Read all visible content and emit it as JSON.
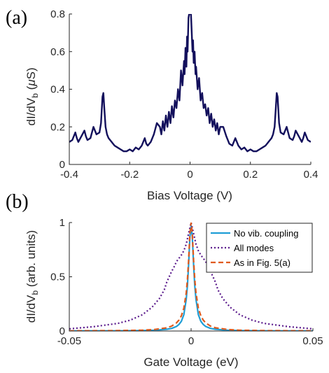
{
  "figure": {
    "panel_a_label": "(a)",
    "panel_b_label": "(b)"
  },
  "chart_data": [
    {
      "type": "line",
      "panel": "(a)",
      "title": "",
      "xlabel": "Bias Voltage (V)",
      "ylabel": "dI/dV_b  (μS)",
      "xlim": [
        -0.4,
        0.4
      ],
      "ylim": [
        0,
        0.8
      ],
      "xticks": [
        -0.4,
        -0.2,
        0,
        0.2,
        0.4
      ],
      "xtick_labels": [
        "-0.4",
        "-0.2",
        "0",
        "0.2",
        "0.4"
      ],
      "yticks": [
        0,
        0.2,
        0.4,
        0.6,
        0.8
      ],
      "ytick_labels": [
        "0",
        "0.2",
        "0.4",
        "0.6",
        "0.8"
      ],
      "grid": false,
      "color": "#13105c",
      "series": [
        {
          "x": [
            -0.4,
            -0.39,
            -0.38,
            -0.375,
            -0.37,
            -0.36,
            -0.35,
            -0.345,
            -0.34,
            -0.33,
            -0.32,
            -0.31,
            -0.3,
            -0.295,
            -0.29,
            -0.287,
            -0.284,
            -0.28,
            -0.275,
            -0.27,
            -0.26,
            -0.25,
            -0.24,
            -0.23,
            -0.22,
            -0.21,
            -0.2,
            -0.19,
            -0.18,
            -0.17,
            -0.16,
            -0.15,
            -0.145,
            -0.14,
            -0.13,
            -0.12,
            -0.11,
            -0.1,
            -0.095,
            -0.09,
            -0.085,
            -0.08,
            -0.075,
            -0.07,
            -0.065,
            -0.06,
            -0.055,
            -0.05,
            -0.045,
            -0.04,
            -0.035,
            -0.03,
            -0.025,
            -0.02,
            -0.018,
            -0.015,
            -0.012,
            -0.01,
            -0.008,
            -0.005,
            -0.003,
            0,
            0.003,
            0.005,
            0.008,
            0.01,
            0.012,
            0.015,
            0.018,
            0.02,
            0.025,
            0.03,
            0.035,
            0.04,
            0.045,
            0.05,
            0.055,
            0.06,
            0.065,
            0.07,
            0.075,
            0.08,
            0.085,
            0.09,
            0.095,
            0.1,
            0.11,
            0.12,
            0.13,
            0.14,
            0.145,
            0.15,
            0.16,
            0.17,
            0.18,
            0.19,
            0.2,
            0.21,
            0.22,
            0.23,
            0.24,
            0.25,
            0.26,
            0.27,
            0.275,
            0.28,
            0.284,
            0.287,
            0.29,
            0.295,
            0.3,
            0.31,
            0.32,
            0.33,
            0.34,
            0.345,
            0.35,
            0.36,
            0.37,
            0.375,
            0.38,
            0.39,
            0.4
          ],
          "y": [
            0.12,
            0.13,
            0.17,
            0.14,
            0.12,
            0.15,
            0.18,
            0.15,
            0.13,
            0.14,
            0.2,
            0.16,
            0.17,
            0.22,
            0.36,
            0.38,
            0.3,
            0.2,
            0.16,
            0.14,
            0.12,
            0.1,
            0.09,
            0.08,
            0.07,
            0.07,
            0.08,
            0.07,
            0.09,
            0.08,
            0.1,
            0.14,
            0.11,
            0.1,
            0.12,
            0.16,
            0.22,
            0.2,
            0.16,
            0.23,
            0.18,
            0.26,
            0.2,
            0.28,
            0.22,
            0.31,
            0.25,
            0.34,
            0.3,
            0.4,
            0.34,
            0.5,
            0.42,
            0.55,
            0.48,
            0.62,
            0.52,
            0.68,
            0.6,
            0.78,
            0.8,
            0.8,
            0.8,
            0.72,
            0.6,
            0.66,
            0.54,
            0.6,
            0.48,
            0.52,
            0.4,
            0.46,
            0.34,
            0.38,
            0.3,
            0.32,
            0.26,
            0.3,
            0.22,
            0.27,
            0.2,
            0.24,
            0.18,
            0.22,
            0.16,
            0.2,
            0.2,
            0.15,
            0.11,
            0.1,
            0.12,
            0.14,
            0.1,
            0.08,
            0.09,
            0.07,
            0.08,
            0.07,
            0.07,
            0.08,
            0.09,
            0.1,
            0.12,
            0.14,
            0.16,
            0.2,
            0.3,
            0.38,
            0.36,
            0.22,
            0.17,
            0.16,
            0.2,
            0.14,
            0.13,
            0.15,
            0.18,
            0.15,
            0.12,
            0.14,
            0.17,
            0.13,
            0.12
          ]
        }
      ]
    },
    {
      "type": "line",
      "panel": "(b)",
      "title": "",
      "xlabel": "Gate Voltage (eV)",
      "ylabel": "dI/dV_b  (arb. units)",
      "xlim": [
        -0.05,
        0.05
      ],
      "ylim": [
        0,
        1
      ],
      "xticks": [
        -0.05,
        0,
        0.05
      ],
      "xtick_labels": [
        "-0.05",
        "0",
        "0.05"
      ],
      "yticks": [
        0,
        0.5,
        1
      ],
      "ytick_labels": [
        "0",
        "0.5",
        "1"
      ],
      "grid": false,
      "legend_position": "top-right",
      "series": [
        {
          "name": "No vib. coupling",
          "color": "#1f9ed6",
          "style": "solid",
          "x": [
            -0.05,
            -0.03,
            -0.02,
            -0.015,
            -0.01,
            -0.008,
            -0.006,
            -0.005,
            -0.004,
            -0.003,
            -0.002,
            -0.0015,
            -0.001,
            -0.0005,
            0,
            0.0005,
            0.001,
            0.0015,
            0.002,
            0.003,
            0.004,
            0.005,
            0.006,
            0.008,
            0.01,
            0.015,
            0.02,
            0.03,
            0.05
          ],
          "y": [
            0.001,
            0.002,
            0.004,
            0.007,
            0.016,
            0.024,
            0.042,
            0.06,
            0.09,
            0.15,
            0.29,
            0.42,
            0.62,
            0.87,
            0.97,
            0.87,
            0.62,
            0.42,
            0.29,
            0.15,
            0.09,
            0.06,
            0.042,
            0.024,
            0.016,
            0.007,
            0.004,
            0.002,
            0.001
          ]
        },
        {
          "name": "All modes",
          "color": "#5a1a8c",
          "style": "dotted",
          "x": [
            -0.05,
            -0.04,
            -0.03,
            -0.025,
            -0.02,
            -0.016,
            -0.013,
            -0.011,
            -0.01,
            -0.009,
            -0.008,
            -0.007,
            -0.006,
            -0.005,
            -0.004,
            -0.003,
            -0.002,
            -0.001,
            0,
            0.001,
            0.002,
            0.003,
            0.004,
            0.005,
            0.006,
            0.007,
            0.008,
            0.009,
            0.01,
            0.011,
            0.013,
            0.016,
            0.02,
            0.025,
            0.03,
            0.04,
            0.05
          ],
          "y": [
            0.02,
            0.04,
            0.07,
            0.1,
            0.15,
            0.22,
            0.3,
            0.38,
            0.45,
            0.5,
            0.55,
            0.59,
            0.64,
            0.67,
            0.7,
            0.74,
            0.8,
            0.9,
            1.0,
            0.9,
            0.8,
            0.74,
            0.7,
            0.67,
            0.64,
            0.59,
            0.55,
            0.5,
            0.45,
            0.38,
            0.3,
            0.22,
            0.15,
            0.1,
            0.07,
            0.04,
            0.02
          ]
        },
        {
          "name": "As in Fig. 5(a)",
          "color": "#e05a1c",
          "style": "dashed",
          "x": [
            -0.05,
            -0.03,
            -0.02,
            -0.015,
            -0.01,
            -0.008,
            -0.006,
            -0.005,
            -0.004,
            -0.003,
            -0.002,
            -0.0015,
            -0.001,
            -0.0005,
            0,
            0.0005,
            0.001,
            0.0015,
            0.002,
            0.003,
            0.004,
            0.005,
            0.006,
            0.008,
            0.01,
            0.015,
            0.02,
            0.03,
            0.05
          ],
          "y": [
            0.002,
            0.004,
            0.008,
            0.014,
            0.03,
            0.045,
            0.075,
            0.1,
            0.14,
            0.21,
            0.35,
            0.48,
            0.66,
            0.9,
            1.0,
            0.9,
            0.66,
            0.48,
            0.35,
            0.21,
            0.14,
            0.1,
            0.075,
            0.045,
            0.03,
            0.014,
            0.008,
            0.004,
            0.002
          ]
        }
      ]
    }
  ]
}
